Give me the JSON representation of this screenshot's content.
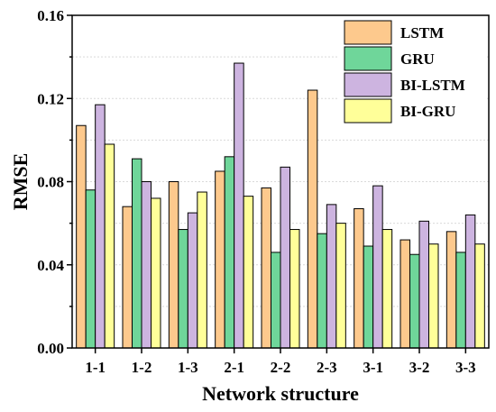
{
  "chart_data": {
    "type": "bar",
    "xlabel": "Network structure",
    "ylabel": "RMSE",
    "ylim": [
      0,
      0.16
    ],
    "yticks": [
      "0.00",
      "0.04",
      "0.08",
      "0.12",
      "0.16"
    ],
    "grid": true,
    "legend_position": "top-right",
    "categories": [
      "1-1",
      "1-2",
      "1-3",
      "2-1",
      "2-2",
      "2-3",
      "3-1",
      "3-2",
      "3-3"
    ],
    "series": [
      {
        "name": "LSTM",
        "color": "#FDC98D",
        "values": [
          0.107,
          0.068,
          0.08,
          0.085,
          0.077,
          0.124,
          0.067,
          0.052,
          0.056
        ]
      },
      {
        "name": "GRU",
        "color": "#6FD69A",
        "values": [
          0.076,
          0.091,
          0.057,
          0.092,
          0.046,
          0.055,
          0.049,
          0.045,
          0.046
        ]
      },
      {
        "name": "BI-LSTM",
        "color": "#CDB4E0",
        "values": [
          0.117,
          0.08,
          0.065,
          0.137,
          0.087,
          0.069,
          0.078,
          0.061,
          0.064
        ]
      },
      {
        "name": "BI-GRU",
        "color": "#FFFF99",
        "values": [
          0.098,
          0.072,
          0.075,
          0.073,
          0.057,
          0.06,
          0.057,
          0.05,
          0.05
        ]
      }
    ]
  }
}
